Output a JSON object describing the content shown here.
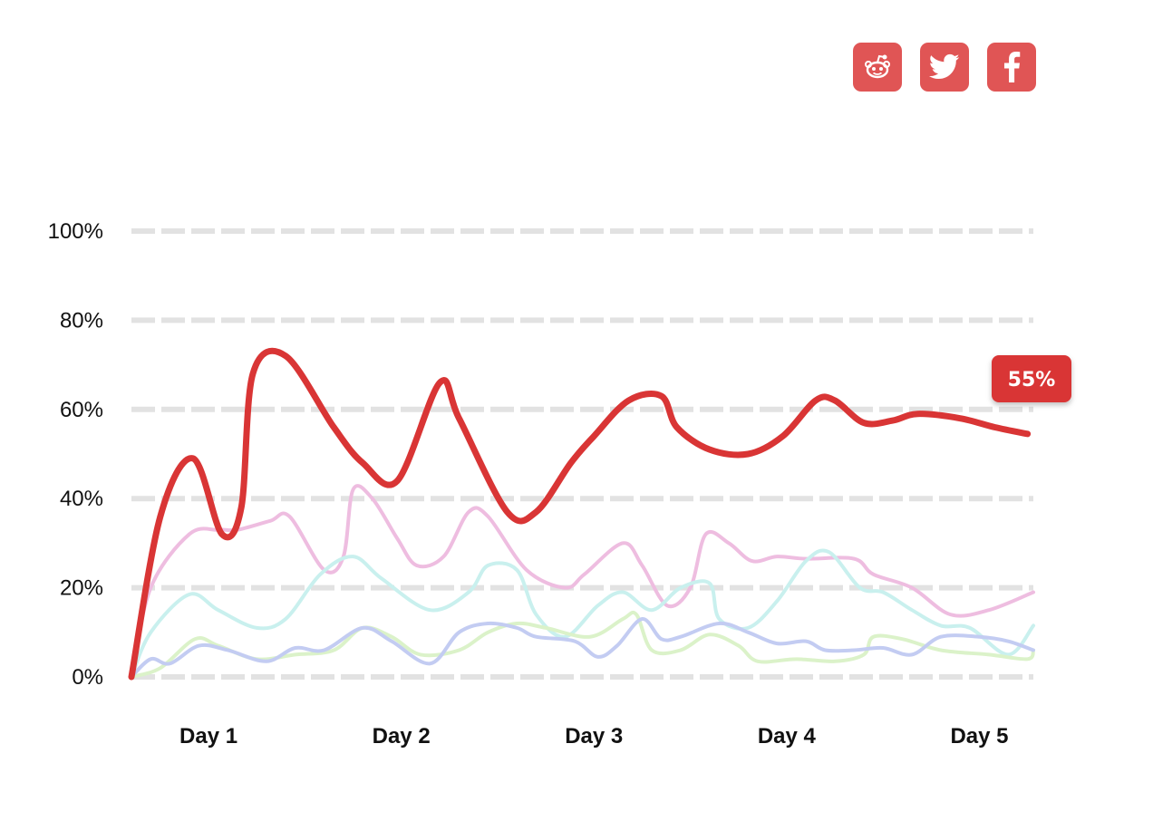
{
  "share": {
    "buttons": [
      {
        "name": "reddit-share-button",
        "icon": "reddit-icon"
      },
      {
        "name": "twitter-share-button",
        "icon": "twitter-icon"
      },
      {
        "name": "facebook-share-button",
        "icon": "facebook-icon"
      }
    ],
    "color": "#e05555"
  },
  "chart_data": {
    "type": "line",
    "ylim": [
      0,
      100
    ],
    "xlim": [
      0,
      4.68
    ],
    "y_ticks": [
      "0%",
      "20%",
      "40%",
      "60%",
      "80%",
      "100%"
    ],
    "x_ticks": [
      {
        "x": 0.4,
        "label": "Day 1"
      },
      {
        "x": 1.4,
        "label": "Day 2"
      },
      {
        "x": 2.4,
        "label": "Day 3"
      },
      {
        "x": 3.4,
        "label": "Day 4"
      },
      {
        "x": 4.4,
        "label": "Day 5"
      }
    ],
    "grid": true,
    "grid_style": "dashed",
    "end_label": "55%",
    "series": [
      {
        "color": "#d93535",
        "highlight": true,
        "points": [
          [
            0,
            0
          ],
          [
            0.15,
            36
          ],
          [
            0.32,
            49
          ],
          [
            0.47,
            32
          ],
          [
            0.57,
            38
          ],
          [
            0.63,
            68
          ],
          [
            0.8,
            72
          ],
          [
            1.05,
            56
          ],
          [
            1.2,
            48
          ],
          [
            1.38,
            44
          ],
          [
            1.6,
            66
          ],
          [
            1.7,
            58
          ],
          [
            1.95,
            37
          ],
          [
            2.1,
            37
          ],
          [
            2.28,
            48
          ],
          [
            2.4,
            54
          ],
          [
            2.58,
            62
          ],
          [
            2.75,
            63
          ],
          [
            2.83,
            56
          ],
          [
            3.0,
            51
          ],
          [
            3.2,
            50
          ],
          [
            3.38,
            54
          ],
          [
            3.55,
            62
          ],
          [
            3.65,
            62
          ],
          [
            3.8,
            57
          ],
          [
            3.95,
            57.5
          ],
          [
            4.08,
            59
          ],
          [
            4.3,
            58
          ],
          [
            4.48,
            56
          ],
          [
            4.65,
            54.5
          ]
        ]
      },
      {
        "color": "#eebde0",
        "highlight": false,
        "points": [
          [
            0,
            0
          ],
          [
            0.1,
            20
          ],
          [
            0.3,
            32
          ],
          [
            0.45,
            33
          ],
          [
            0.55,
            33
          ],
          [
            0.72,
            35
          ],
          [
            0.82,
            36
          ],
          [
            1.0,
            24
          ],
          [
            1.1,
            27
          ],
          [
            1.15,
            42
          ],
          [
            1.25,
            40
          ],
          [
            1.38,
            31
          ],
          [
            1.48,
            25
          ],
          [
            1.62,
            27
          ],
          [
            1.75,
            37
          ],
          [
            1.85,
            36
          ],
          [
            2.05,
            24
          ],
          [
            2.25,
            20
          ],
          [
            2.35,
            23
          ],
          [
            2.55,
            30
          ],
          [
            2.65,
            25
          ],
          [
            2.78,
            16
          ],
          [
            2.9,
            20
          ],
          [
            2.98,
            32
          ],
          [
            3.1,
            30
          ],
          [
            3.22,
            26
          ],
          [
            3.35,
            27
          ],
          [
            3.5,
            26.5
          ],
          [
            3.75,
            26.5
          ],
          [
            3.85,
            23
          ],
          [
            4.05,
            20
          ],
          [
            4.25,
            14
          ],
          [
            4.45,
            15
          ],
          [
            4.68,
            19
          ]
        ]
      },
      {
        "color": "#c9f0ee",
        "highlight": false,
        "points": [
          [
            0,
            0
          ],
          [
            0.1,
            10
          ],
          [
            0.3,
            18.5
          ],
          [
            0.45,
            15
          ],
          [
            0.65,
            11
          ],
          [
            0.8,
            13
          ],
          [
            0.98,
            23
          ],
          [
            1.15,
            27
          ],
          [
            1.3,
            22
          ],
          [
            1.55,
            15
          ],
          [
            1.75,
            19
          ],
          [
            1.85,
            25
          ],
          [
            2.0,
            24
          ],
          [
            2.1,
            14
          ],
          [
            2.25,
            9
          ],
          [
            2.42,
            16
          ],
          [
            2.55,
            19
          ],
          [
            2.7,
            15
          ],
          [
            2.85,
            20
          ],
          [
            3.0,
            21
          ],
          [
            3.05,
            13
          ],
          [
            3.2,
            11
          ],
          [
            3.35,
            17
          ],
          [
            3.5,
            26
          ],
          [
            3.62,
            28
          ],
          [
            3.78,
            20
          ],
          [
            3.9,
            19
          ],
          [
            4.05,
            15
          ],
          [
            4.2,
            11.5
          ],
          [
            4.35,
            11
          ],
          [
            4.55,
            5
          ],
          [
            4.68,
            11.5
          ]
        ]
      },
      {
        "color": "#dbf2c9",
        "highlight": false,
        "points": [
          [
            0,
            0
          ],
          [
            0.15,
            2
          ],
          [
            0.33,
            8.5
          ],
          [
            0.45,
            7
          ],
          [
            0.65,
            4
          ],
          [
            0.85,
            5
          ],
          [
            1.05,
            6
          ],
          [
            1.2,
            11
          ],
          [
            1.35,
            9
          ],
          [
            1.5,
            5
          ],
          [
            1.7,
            6
          ],
          [
            1.85,
            10
          ],
          [
            2.0,
            12
          ],
          [
            2.15,
            11
          ],
          [
            2.38,
            9
          ],
          [
            2.55,
            13
          ],
          [
            2.62,
            14
          ],
          [
            2.7,
            6
          ],
          [
            2.85,
            6
          ],
          [
            3.0,
            9.5
          ],
          [
            3.15,
            7
          ],
          [
            3.25,
            3.5
          ],
          [
            3.45,
            4
          ],
          [
            3.65,
            3.5
          ],
          [
            3.8,
            5
          ],
          [
            3.85,
            9
          ],
          [
            4.0,
            8.5
          ],
          [
            4.2,
            6
          ],
          [
            4.45,
            5
          ],
          [
            4.65,
            4
          ],
          [
            4.68,
            6
          ]
        ]
      },
      {
        "color": "#c3ccf2",
        "highlight": false,
        "points": [
          [
            0,
            0
          ],
          [
            0.1,
            4
          ],
          [
            0.2,
            3
          ],
          [
            0.35,
            7
          ],
          [
            0.5,
            6
          ],
          [
            0.7,
            3.5
          ],
          [
            0.85,
            6.5
          ],
          [
            1.0,
            6
          ],
          [
            1.2,
            11
          ],
          [
            1.35,
            8
          ],
          [
            1.55,
            3
          ],
          [
            1.7,
            10
          ],
          [
            1.85,
            12
          ],
          [
            2.0,
            11
          ],
          [
            2.1,
            9
          ],
          [
            2.3,
            8
          ],
          [
            2.42,
            4.5
          ],
          [
            2.52,
            7
          ],
          [
            2.65,
            13
          ],
          [
            2.75,
            8.5
          ],
          [
            2.85,
            9
          ],
          [
            3.05,
            12
          ],
          [
            3.2,
            10
          ],
          [
            3.35,
            7.5
          ],
          [
            3.5,
            8
          ],
          [
            3.6,
            6
          ],
          [
            3.75,
            6
          ],
          [
            3.9,
            6.5
          ],
          [
            4.05,
            5
          ],
          [
            4.2,
            9
          ],
          [
            4.4,
            9
          ],
          [
            4.55,
            8
          ],
          [
            4.68,
            6
          ]
        ]
      }
    ]
  }
}
